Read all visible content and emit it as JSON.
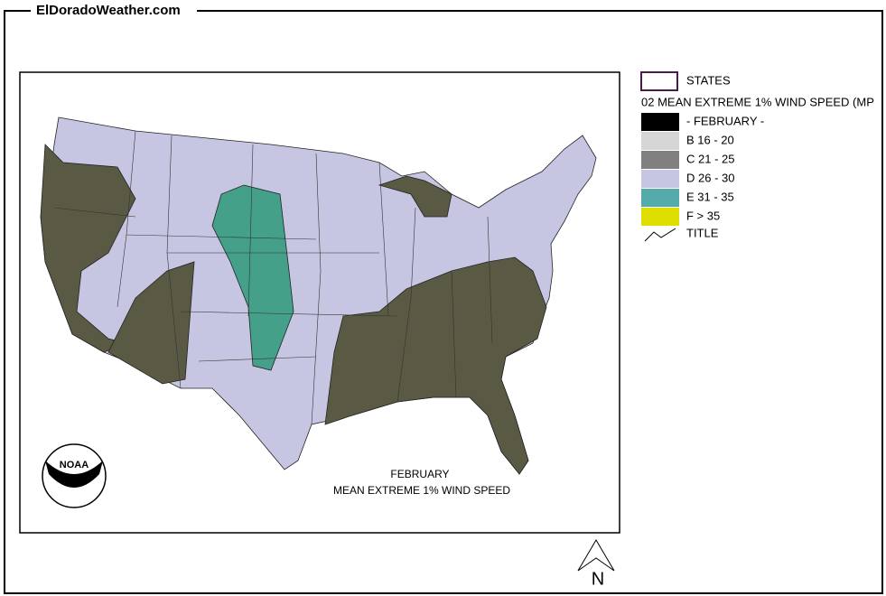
{
  "header": {
    "site": "ElDoradoWeather.com"
  },
  "legend": {
    "states": "STATES",
    "layer": "02 MEAN EXTREME 1% WIND SPEED (MP",
    "items": [
      {
        "label": "- FEBRUARY -",
        "color": "#000000"
      },
      {
        "label": "B 16 - 20",
        "color": "#d6d6d6"
      },
      {
        "label": "C 21 - 25",
        "color": "#808080"
      },
      {
        "label": "D 26 - 30",
        "color": "#c6c6e2"
      },
      {
        "label": "E 31 - 35",
        "color": "#55aaaa"
      },
      {
        "label": "F > 35",
        "color": "#dede00"
      }
    ],
    "title": "TITLE"
  },
  "map": {
    "title": "FEBRUARY",
    "subtitle": "MEAN EXTREME 1% WIND SPEED",
    "logo": "NOAA",
    "north": "N"
  }
}
